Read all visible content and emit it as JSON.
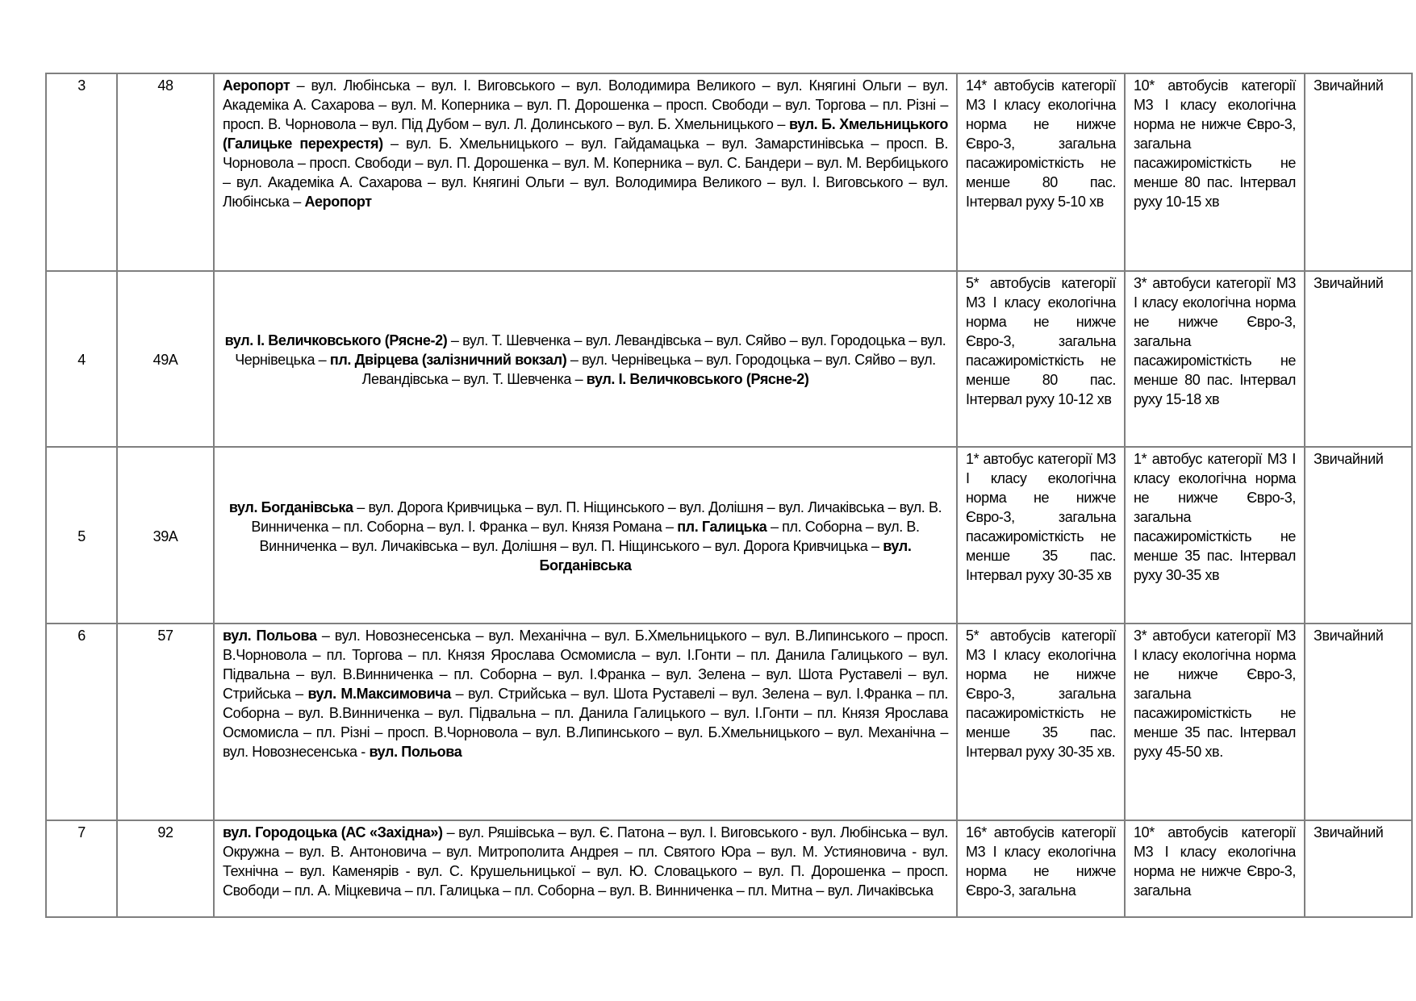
{
  "rows": [
    {
      "no": "3",
      "route_no": "48",
      "centered": false,
      "route": [
        {
          "t": "Аеропорт",
          "b": true
        },
        {
          "t": " – вул. Любінська – вул. І. Виговського – вул. Володимира Великого – вул. Княгині Ольги – вул. Академіка А. Сахарова – вул. М. Коперника – вул. П. Дорошенка – просп. Свободи – вул. Торгова – пл. Різні – просп. В. Чорновола – вул. Під Дубом – вул. Л. Долинського – вул. Б. Хмельницького – ",
          "b": false
        },
        {
          "t": "вул. Б. Хмельницького (Галицьке перехрестя)",
          "b": true
        },
        {
          "t": " – вул. Б. Хмельницького – вул. Гайдамацька – вул. Замарстинівська – просп. В. Чорновола – просп. Свободи – вул. П. Дорошенка – вул. М. Коперника – вул. С. Бандери – вул. М. Вербицького – вул. Академіка А. Сахарова – вул. Княгині Ольги – вул. Володимира Великого – вул. І. Виговського – вул. Любінська – ",
          "b": false
        },
        {
          "t": "Аеропорт",
          "b": true
        }
      ],
      "buses_peak": "14* автобусів категорії М3 І класу екологічна норма не нижче Євро-3, загальна пасажиромісткість не менше 80 пас. Інтервал руху 5-10 хв",
      "buses_offpeak": "10* автобусів категорії М3 І класу екологічна норма не нижче Євро-3, загальна пасажиромісткість не менше 80 пас. Інтервал руху 10-15 хв",
      "mode": "Звичайний",
      "height": 241
    },
    {
      "no": "4",
      "route_no": "49А",
      "centered": true,
      "route": [
        {
          "t": "вул. І. Величковського (Рясне-2)",
          "b": true
        },
        {
          "t": " – вул. Т. Шевченка – вул. Левандівська – вул. Сяйво – вул. Городоцька – вул. Чернівецька – ",
          "b": false
        },
        {
          "t": "пл. Двірцева (залізничний вокзал)",
          "b": true
        },
        {
          "t": " – вул. Чернівецька – вул. Городоцька – вул. Сяйво – вул. Левандівська – вул. Т. Шевченка – ",
          "b": false
        },
        {
          "t": "вул. І. Величковського (Рясне-2)",
          "b": true
        }
      ],
      "buses_peak": "5* автобусів категорії М3 І класу екологічна норма не нижче Євро-3, загальна пасажиромісткість не менше 80 пас. Інтервал руху 10-12 хв",
      "buses_offpeak": "3* автобуси категорії М3 І класу екологічна норма не нижче Євро-3, загальна пасажиромісткість не менше 80 пас. Інтервал руху 15-18 хв",
      "mode": "Звичайний",
      "height": 214
    },
    {
      "no": "5",
      "route_no": "39А",
      "centered": true,
      "route": [
        {
          "t": "вул. Богданівська",
          "b": true
        },
        {
          "t": " – вул. Дорога Кривчицька – вул. П. Ніщинського – вул. Долішня – вул. Личаківська – вул. В. Винниченка – пл. Соборна – вул. І. Франка – вул. Князя Романа – ",
          "b": false
        },
        {
          "t": "пл. Галицька",
          "b": true
        },
        {
          "t": " – пл. Соборна – вул. В. Винниченка – вул. Личаківська – вул. Долішня – вул. П. Ніщинського – вул. Дорога Кривчицька – ",
          "b": false
        },
        {
          "t": "вул. Богданівська",
          "b": true
        }
      ],
      "buses_peak": "1* автобус категорії М3 І класу екологічна норма не нижче Євро-3, загальна пасажиромісткість не менше 35 пас. Інтервал руху 30-35 хв",
      "buses_offpeak": "1* автобус категорії М3 І класу екологічна норма не нижче Євро-3, загальна пасажиромісткість не менше 35 пас. Інтервал руху 30-35 хв",
      "mode": "Звичайний",
      "height": 215
    },
    {
      "no": "6",
      "route_no": "57",
      "centered": false,
      "route": [
        {
          "t": "вул. Польова",
          "b": true
        },
        {
          "t": " – вул. Новознесенська – вул. Механічна – вул. Б.Хмельницького – вул. В.Липинського – просп. В.Чорновола – пл. Торгова – пл. Князя Ярослава Осмомисла – вул. І.Гонти – пл. Данила Галицького – вул. Підвальна – вул. В.Винниченка – пл. Соборна – вул. І.Франка – вул. Зелена – вул. Шота Руставелі – вул. Стрийська – ",
          "b": false
        },
        {
          "t": "вул. М.Максимовича",
          "b": true
        },
        {
          "t": " – вул. Стрийська – вул. Шота Руставелі – вул. Зелена – вул. І.Франка – пл. Соборна – вул. В.Винниченка – вул. Підвальна – пл. Данила Галицького – вул. І.Гонти – пл. Князя Ярослава Осмомисла – пл. Різні – просп. В.Чорновола – вул. В.Липинського – вул. Б.Хмельницького – вул. Механічна – вул. Новознесенська - ",
          "b": false
        },
        {
          "t": "вул. Польова",
          "b": true
        }
      ],
      "buses_peak": "5* автобусів категорії М3 І класу екологічна норма не нижче Євро-3, загальна пасажиромісткість не менше 35 пас. Інтервал руху 30-35 хв.",
      "buses_offpeak": "3* автобуси категорії М3 І класу екологічна норма не нижче Євро-3, загальна пасажиромісткість не менше 35 пас. Інтервал руху 45-50 хв.",
      "mode": "Звичайний",
      "height": 240
    },
    {
      "no": "7",
      "route_no": "92",
      "centered": false,
      "route": [
        {
          "t": "вул. Городоцька (АС «Західна»)",
          "b": true
        },
        {
          "t": " – вул. Ряшівська – вул. Є. Патона – вул. І. Виговського - вул. Любінська – вул. Окружна – вул. В. Антоновича – вул. Митрополита Андрея – пл. Святого Юра – вул. М. Устияновича - вул. Технічна – вул. Каменярів - вул. С. Крушельницької – вул. Ю. Словацького – вул. П. Дорошенка – просп. Свободи – пл. А. Міцкевича – пл. Галицька – пл. Соборна – вул. В. Винниченка – пл. Митна – вул. Личаківська",
          "b": false
        }
      ],
      "buses_peak": "16* автобусів категорії М3 І класу екологічна норма не нижче Євро-3, загальна",
      "buses_offpeak": "10* автобусів категорії М3 І класу екологічна норма не нижче Євро-3, загальна",
      "mode": "Звичайний",
      "height": 116
    }
  ]
}
